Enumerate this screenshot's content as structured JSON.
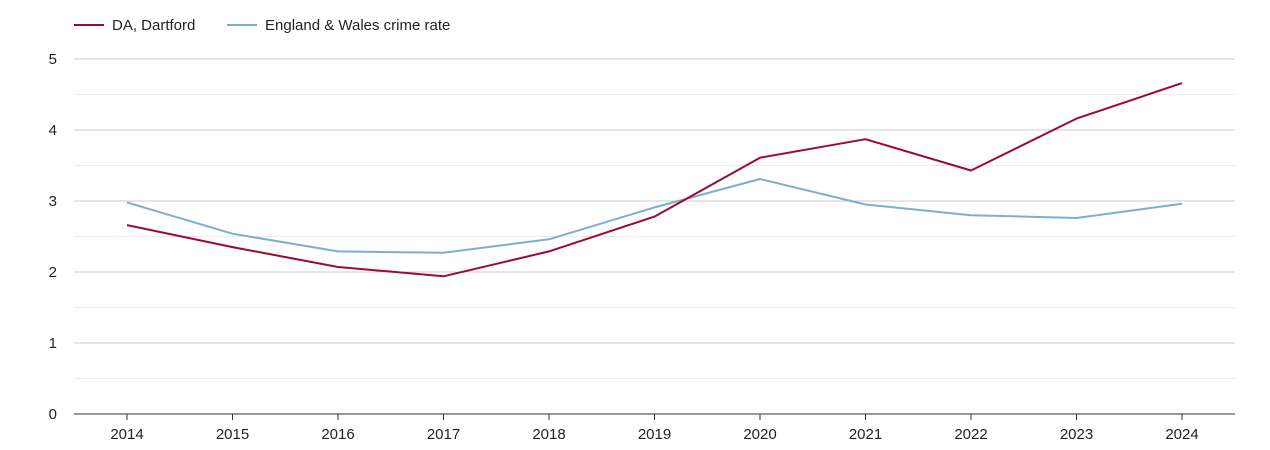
{
  "chart_data": {
    "type": "line",
    "title": "",
    "xlabel": "",
    "ylabel": "",
    "x": [
      "2014",
      "2015",
      "2016",
      "2017",
      "2018",
      "2019",
      "2020",
      "2021",
      "2022",
      "2023",
      "2024"
    ],
    "ylim": [
      0,
      5
    ],
    "yticks": [
      "0",
      "1",
      "2",
      "3",
      "4",
      "5"
    ],
    "grid": true,
    "legend_position": "top-left",
    "series": [
      {
        "name": "DA, Dartford",
        "color": "#9b0a36",
        "values": [
          2.66,
          2.35,
          2.07,
          1.94,
          2.29,
          2.78,
          3.61,
          3.87,
          3.43,
          4.16,
          4.66
        ]
      },
      {
        "name": "England & Wales crime rate",
        "color": "#7bafd0",
        "values": [
          2.98,
          2.54,
          2.29,
          2.27,
          2.46,
          2.91,
          3.31,
          2.95,
          2.8,
          2.76,
          2.96
        ]
      }
    ]
  }
}
